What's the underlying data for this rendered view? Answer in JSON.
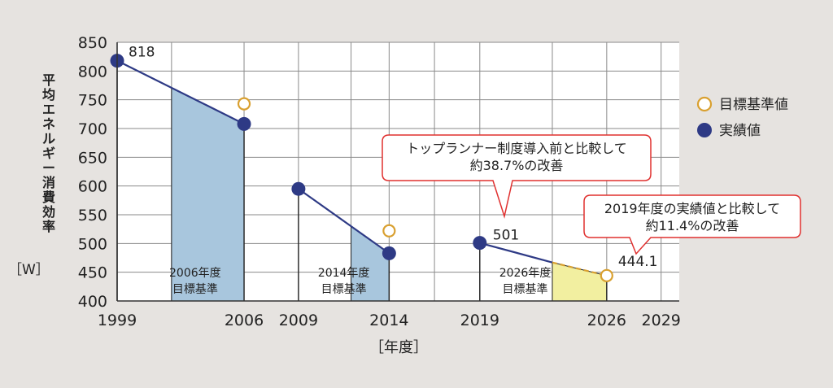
{
  "chart_data": {
    "type": "line",
    "ylabel": "平均エネルギー消費効率",
    "yunit": "［W］",
    "xlabel": "［年度］",
    "ylim": [
      400,
      850
    ],
    "xlim": [
      1999,
      2030
    ],
    "yticks": [
      400,
      450,
      500,
      550,
      600,
      650,
      700,
      750,
      800,
      850
    ],
    "xticks": [
      1999,
      2006,
      2009,
      2014,
      2019,
      2026,
      2029
    ],
    "grid": true,
    "legend": {
      "position": "right",
      "items": [
        {
          "label": "目標基準値",
          "marker": "open-circle",
          "color": "#d9a030"
        },
        {
          "label": "実績値",
          "marker": "filled-circle",
          "color": "#2e3a85"
        }
      ]
    },
    "segments": [
      {
        "name": "2006年度目標基準",
        "label_lines": [
          "2006年度",
          "目標基準"
        ],
        "actual": [
          {
            "x": 1999,
            "y": 818
          },
          {
            "x": 2006,
            "y": 708
          }
        ],
        "target": {
          "x": 2006,
          "y": 743
        },
        "shade_from_x": 2002,
        "shade_color": "#a8c6dd"
      },
      {
        "name": "2014年度目標基準",
        "label_lines": [
          "2014年度",
          "目標基準"
        ],
        "actual": [
          {
            "x": 2009,
            "y": 595
          },
          {
            "x": 2014,
            "y": 483
          }
        ],
        "target": {
          "x": 2014,
          "y": 522
        },
        "shade_from_x": 2011.9,
        "shade_color": "#a8c6dd"
      },
      {
        "name": "2026年度目標基準",
        "label_lines": [
          "2026年度",
          "目標基準"
        ],
        "actual": [
          {
            "x": 2019,
            "y": 501
          },
          {
            "x": 2023,
            "y": 467
          }
        ],
        "projection": [
          {
            "x": 2023,
            "y": 467
          },
          {
            "x": 2026,
            "y": 444.1
          }
        ],
        "target": {
          "x": 2026,
          "y": 444.1
        },
        "shade_from_x": 2023,
        "shade_color": "#f2efa0"
      }
    ],
    "value_labels": [
      {
        "x": 1999,
        "y": 818,
        "text": "818"
      },
      {
        "x": 2019,
        "y": 501,
        "text": "501"
      },
      {
        "x": 2026,
        "y": 444.1,
        "text": "444.1"
      }
    ],
    "annotations": [
      {
        "lines": [
          "トップランナー制度導入前と比較して",
          "約38.7%の改善"
        ],
        "pointer_target": {
          "x": 2019,
          "y": 501
        },
        "border_color": "#e0302f"
      },
      {
        "lines": [
          "2019年度の実績値と比較して",
          "約11.4%の改善"
        ],
        "pointer_target": {
          "x": 2026,
          "y": 444.1
        },
        "border_color": "#e0302f"
      }
    ],
    "colors": {
      "actual": "#2e3a85",
      "target": "#d9a030",
      "projection": "#d9a030",
      "grid": "#8a8a8a",
      "axis": "#333333",
      "callout_border": "#e0302f"
    }
  }
}
